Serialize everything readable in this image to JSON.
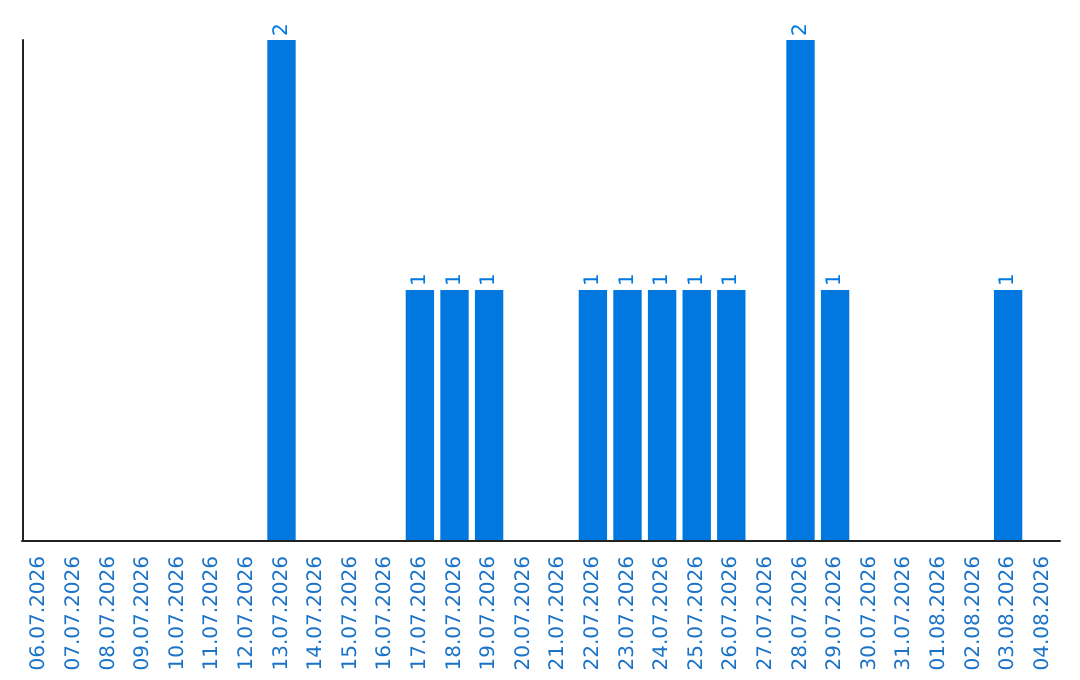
{
  "chart_data": {
    "type": "bar",
    "categories": [
      "06.07.2026",
      "07.07.2026",
      "08.07.2026",
      "09.07.2026",
      "10.07.2026",
      "11.07.2026",
      "12.07.2026",
      "13.07.2026",
      "14.07.2026",
      "15.07.2026",
      "16.07.2026",
      "17.07.2026",
      "18.07.2026",
      "19.07.2026",
      "20.07.2026",
      "21.07.2026",
      "22.07.2026",
      "23.07.2026",
      "24.07.2026",
      "25.07.2026",
      "26.07.2026",
      "27.07.2026",
      "28.07.2026",
      "29.07.2026",
      "30.07.2026",
      "31.07.2026",
      "01.08.2026",
      "02.08.2026",
      "03.08.2026",
      "04.08.2026"
    ],
    "values": [
      0,
      0,
      0,
      0,
      0,
      0,
      0,
      2,
      0,
      0,
      0,
      1,
      1,
      1,
      0,
      0,
      1,
      1,
      1,
      1,
      1,
      0,
      2,
      1,
      0,
      0,
      0,
      0,
      1,
      0
    ],
    "value_labels": [
      null,
      null,
      null,
      null,
      null,
      null,
      null,
      "2",
      null,
      null,
      null,
      "1",
      "1",
      "1",
      null,
      null,
      "1",
      "1",
      "1",
      "1",
      "1",
      null,
      "2",
      "1",
      null,
      null,
      null,
      null,
      "1",
      null
    ],
    "color": "#0078e0"
  }
}
